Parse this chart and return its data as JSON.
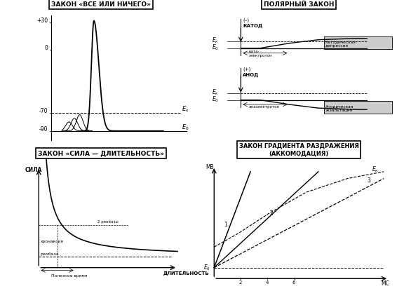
{
  "title1": "ЗАКОН «ВСЕ ИЛИ НИЧЕГО»",
  "title2": "ПОЛЯРНЫЙ ЗАКОН",
  "title3": "ЗАКОН «СИЛА — ДЛИТЕЛЬНОСТЬ»",
  "title4": "ЗАКОН ГРАДИЕНТА РАЗДРАЖЕНИЯ\n(АККОМОДАЦИЯ)",
  "panel_edge": "black",
  "line_color": "black",
  "bg": "white"
}
